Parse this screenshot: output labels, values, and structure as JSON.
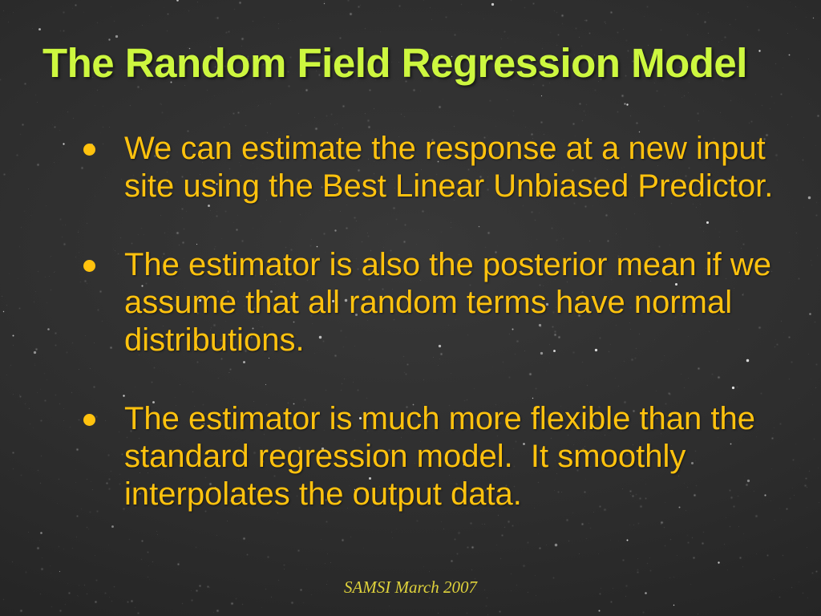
{
  "slide": {
    "title": "The Random Field Regression Model",
    "bullets": [
      "We can estimate the response at a new input site using the Best Linear Unbiased Predictor.",
      "The estimator is also the posterior mean if we assume that all random terms have normal distributions.",
      "The estimator is much more flexible than the standard regression model.  It smoothly interpolates the output data."
    ],
    "footer": "SAMSI March 2007",
    "colors": {
      "title": "#cdf73f",
      "body": "#ffc20e",
      "footer": "#dfd23b",
      "background": "#2d2d2d"
    },
    "icons": {
      "bullet": "filled-circle"
    }
  }
}
